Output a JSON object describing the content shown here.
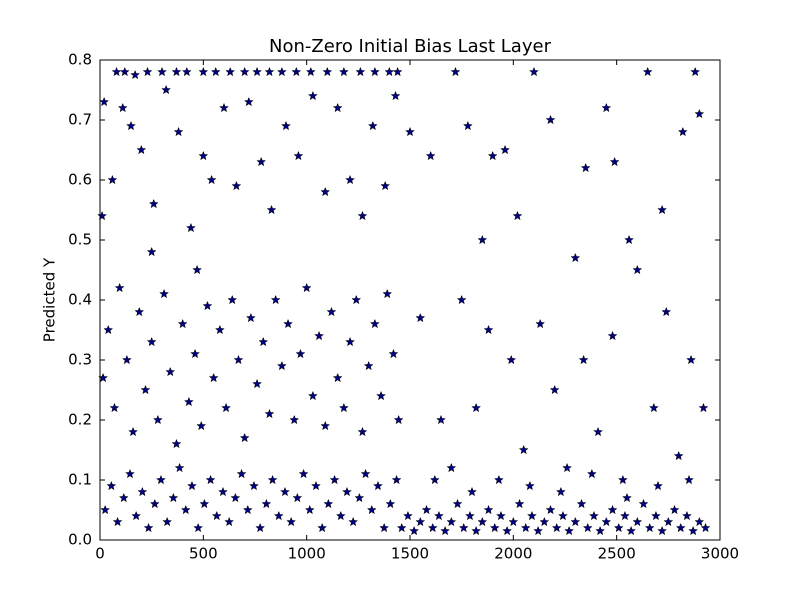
{
  "chart_data": {
    "type": "scatter",
    "title": "Non-Zero Initial Bias Last Layer",
    "y_label": "Predicted Y",
    "marker": "star",
    "color": "#000080",
    "x": [
      80,
      120,
      170,
      230,
      300,
      370,
      420,
      500,
      560,
      630,
      700,
      760,
      820,
      880,
      950,
      1020,
      1100,
      1180,
      1260,
      1330,
      1400,
      1440,
      20,
      60,
      110,
      150,
      200,
      260,
      320,
      380,
      440,
      500,
      540,
      600,
      660,
      720,
      780,
      830,
      900,
      960,
      1030,
      1090,
      1150,
      1210,
      1270,
      1320,
      1380,
      1430,
      10,
      250,
      470,
      15,
      40,
      70,
      95,
      130,
      160,
      190,
      220,
      250,
      280,
      310,
      340,
      370,
      400,
      430,
      460,
      490,
      520,
      550,
      580,
      610,
      640,
      670,
      700,
      730,
      760,
      790,
      820,
      850,
      880,
      910,
      940,
      970,
      1000,
      1030,
      1060,
      1090,
      1120,
      1150,
      1180,
      1210,
      1240,
      1270,
      1300,
      1330,
      1360,
      1390,
      1420,
      1445,
      25,
      55,
      85,
      115,
      145,
      175,
      205,
      235,
      265,
      295,
      325,
      355,
      385,
      415,
      445,
      475,
      505,
      535,
      565,
      595,
      625,
      655,
      685,
      715,
      745,
      775,
      805,
      835,
      865,
      895,
      925,
      955,
      985,
      1015,
      1045,
      1075,
      1105,
      1135,
      1165,
      1195,
      1225,
      1255,
      1285,
      1315,
      1345,
      1375,
      1405,
      1435,
      1460,
      1490,
      1520,
      1550,
      1580,
      1610,
      1640,
      1670,
      1700,
      1730,
      1760,
      1790,
      1820,
      1850,
      1880,
      1910,
      1940,
      1970,
      2000,
      2030,
      2060,
      2090,
      2120,
      2150,
      2180,
      2210,
      2240,
      2270,
      2300,
      2330,
      2360,
      2390,
      2420,
      2450,
      2480,
      2510,
      2540,
      2570,
      2600,
      2630,
      2660,
      2690,
      2720,
      2750,
      2780,
      2810,
      2840,
      2870,
      2900,
      2930,
      1500,
      1600,
      1720,
      1780,
      1850,
      1900,
      1960,
      2020,
      2100,
      2180,
      2300,
      2350,
      2450,
      2490,
      2560,
      2650,
      2720,
      2820,
      2880,
      2900,
      1550,
      1650,
      1750,
      1820,
      1880,
      1990,
      2050,
      2130,
      2200,
      2260,
      2340,
      2410,
      2480,
      2530,
      2600,
      2680,
      2740,
      2800,
      2860,
      2920,
      1620,
      1700,
      1800,
      1930,
      2080,
      2230,
      2380,
      2550,
      2700,
      2850
    ],
    "y": [
      0.78,
      0.78,
      0.775,
      0.78,
      0.78,
      0.78,
      0.78,
      0.78,
      0.78,
      0.78,
      0.78,
      0.78,
      0.78,
      0.78,
      0.78,
      0.78,
      0.78,
      0.78,
      0.78,
      0.78,
      0.78,
      0.78,
      0.73,
      0.6,
      0.72,
      0.69,
      0.65,
      0.56,
      0.75,
      0.68,
      0.52,
      0.64,
      0.6,
      0.72,
      0.59,
      0.73,
      0.63,
      0.55,
      0.69,
      0.64,
      0.74,
      0.58,
      0.72,
      0.6,
      0.54,
      0.69,
      0.59,
      0.74,
      0.54,
      0.48,
      0.45,
      0.27,
      0.35,
      0.22,
      0.42,
      0.3,
      0.18,
      0.38,
      0.25,
      0.33,
      0.2,
      0.41,
      0.28,
      0.16,
      0.36,
      0.23,
      0.31,
      0.19,
      0.39,
      0.27,
      0.35,
      0.22,
      0.4,
      0.3,
      0.17,
      0.37,
      0.26,
      0.33,
      0.21,
      0.4,
      0.29,
      0.36,
      0.2,
      0.31,
      0.42,
      0.24,
      0.34,
      0.19,
      0.38,
      0.27,
      0.22,
      0.33,
      0.4,
      0.18,
      0.29,
      0.36,
      0.24,
      0.41,
      0.31,
      0.2,
      0.05,
      0.09,
      0.03,
      0.07,
      0.11,
      0.04,
      0.08,
      0.02,
      0.06,
      0.1,
      0.03,
      0.07,
      0.12,
      0.05,
      0.09,
      0.02,
      0.06,
      0.1,
      0.04,
      0.08,
      0.03,
      0.07,
      0.11,
      0.05,
      0.09,
      0.02,
      0.06,
      0.1,
      0.04,
      0.08,
      0.03,
      0.07,
      0.11,
      0.05,
      0.09,
      0.02,
      0.06,
      0.1,
      0.04,
      0.08,
      0.03,
      0.07,
      0.11,
      0.05,
      0.09,
      0.02,
      0.06,
      0.1,
      0.02,
      0.04,
      0.015,
      0.03,
      0.05,
      0.02,
      0.04,
      0.015,
      0.03,
      0.06,
      0.02,
      0.04,
      0.015,
      0.03,
      0.05,
      0.02,
      0.04,
      0.015,
      0.03,
      0.06,
      0.02,
      0.04,
      0.015,
      0.03,
      0.05,
      0.02,
      0.04,
      0.015,
      0.03,
      0.06,
      0.02,
      0.04,
      0.015,
      0.03,
      0.05,
      0.02,
      0.04,
      0.015,
      0.03,
      0.06,
      0.02,
      0.04,
      0.015,
      0.03,
      0.05,
      0.02,
      0.04,
      0.015,
      0.03,
      0.02,
      0.68,
      0.64,
      0.78,
      0.69,
      0.5,
      0.64,
      0.65,
      0.54,
      0.78,
      0.7,
      0.47,
      0.62,
      0.72,
      0.63,
      0.5,
      0.78,
      0.55,
      0.68,
      0.78,
      0.71,
      0.37,
      0.2,
      0.4,
      0.22,
      0.35,
      0.3,
      0.15,
      0.36,
      0.25,
      0.12,
      0.3,
      0.18,
      0.34,
      0.1,
      0.45,
      0.22,
      0.38,
      0.14,
      0.3,
      0.22,
      0.1,
      0.12,
      0.08,
      0.1,
      0.09,
      0.08,
      0.11,
      0.07,
      0.09,
      0.1
    ],
    "xlim": [
      0,
      3000
    ],
    "xticks": [
      0,
      500,
      1000,
      1500,
      2000,
      2500,
      3000
    ],
    "ylim": [
      0,
      0.8
    ],
    "yticks": [
      {
        "value": 0,
        "label": "0.0"
      },
      0.1,
      0.2,
      0.3,
      0.4,
      0.5,
      0.6,
      0.7,
      0.8
    ]
  }
}
